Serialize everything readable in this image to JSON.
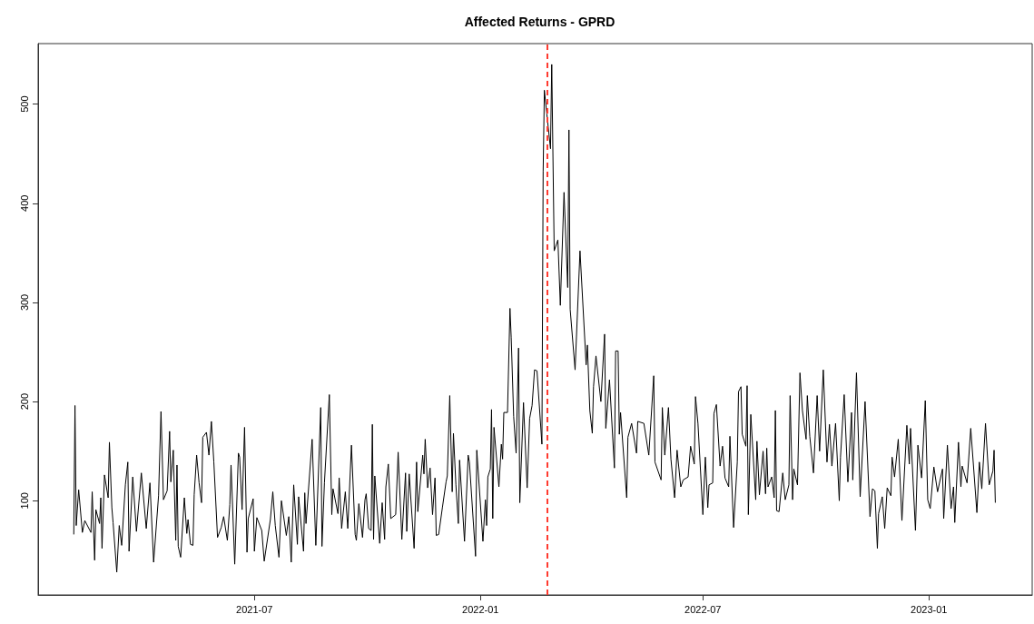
{
  "chart_data": {
    "type": "line",
    "title": "Affected Returns - GPRD",
    "color": "#000000",
    "x": [
      "2021-02-04",
      "2021-02-05",
      "2021-02-06",
      "2021-02-08",
      "2021-02-11",
      "2021-02-13",
      "2021-02-18",
      "2021-02-19",
      "2021-02-21",
      "2021-02-22",
      "2021-02-25",
      "2021-02-26",
      "2021-02-27",
      "2021-03-01",
      "2021-03-04",
      "2021-03-05",
      "2021-03-07",
      "2021-03-08",
      "2021-03-11",
      "2021-03-13",
      "2021-03-15",
      "2021-03-18",
      "2021-03-20",
      "2021-03-21",
      "2021-03-24",
      "2021-03-27",
      "2021-03-31",
      "2021-04-04",
      "2021-04-07",
      "2021-04-10",
      "2021-04-14",
      "2021-04-16",
      "2021-04-18",
      "2021-04-21",
      "2021-04-23",
      "2021-04-24",
      "2021-04-26",
      "2021-04-28",
      "2021-04-29",
      "2021-04-30",
      "2021-05-02",
      "2021-05-05",
      "2021-05-07",
      "2021-05-08",
      "2021-05-10",
      "2021-05-12",
      "2021-05-13",
      "2021-05-15",
      "2021-05-17",
      "2021-05-19",
      "2021-05-20",
      "2021-05-23",
      "2021-05-25",
      "2021-05-27",
      "2021-05-29",
      "2021-06-01",
      "2021-06-04",
      "2021-06-06",
      "2021-06-09",
      "2021-06-11",
      "2021-06-12",
      "2021-06-15",
      "2021-06-18",
      "2021-06-19",
      "2021-06-21",
      "2021-06-23",
      "2021-06-25",
      "2021-06-26",
      "2021-06-30",
      "2021-07-01",
      "2021-07-03",
      "2021-07-07",
      "2021-07-09",
      "2021-07-14",
      "2021-07-16",
      "2021-07-18",
      "2021-07-21",
      "2021-07-23",
      "2021-07-27",
      "2021-07-29",
      "2021-07-31",
      "2021-08-02",
      "2021-08-05",
      "2021-08-06",
      "2021-08-10",
      "2021-08-11",
      "2021-08-12",
      "2021-08-17",
      "2021-08-20",
      "2021-08-24",
      "2021-08-25",
      "2021-08-27",
      "2021-08-31",
      "2021-09-02",
      "2021-09-03",
      "2021-09-07",
      "2021-09-08",
      "2021-09-10",
      "2021-09-13",
      "2021-09-15",
      "2021-09-18",
      "2021-09-21",
      "2021-09-22",
      "2021-09-24",
      "2021-09-27",
      "2021-09-29",
      "2021-09-30",
      "2021-10-02",
      "2021-10-04",
      "2021-10-05",
      "2021-10-06",
      "2021-10-07",
      "2021-10-11",
      "2021-10-13",
      "2021-10-15",
      "2021-10-16",
      "2021-10-18",
      "2021-10-20",
      "2021-10-24",
      "2021-10-26",
      "2021-10-29",
      "2021-11-01",
      "2021-11-02",
      "2021-11-04",
      "2021-11-08",
      "2021-11-10",
      "2021-11-11",
      "2021-11-15",
      "2021-11-16",
      "2021-11-17",
      "2021-11-19",
      "2021-11-21",
      "2021-11-23",
      "2021-11-25",
      "2021-11-26",
      "2021-11-28",
      "2021-12-01",
      "2021-12-04",
      "2021-12-05",
      "2021-12-07",
      "2021-12-09",
      "2021-12-10",
      "2021-12-12",
      "2021-12-14",
      "2021-12-15",
      "2021-12-19",
      "2021-12-22",
      "2021-12-23",
      "2021-12-28",
      "2021-12-29",
      "2022-01-03",
      "2022-01-05",
      "2022-01-06",
      "2022-01-07",
      "2022-01-09",
      "2022-01-10",
      "2022-01-11",
      "2022-01-12",
      "2022-01-16",
      "2022-01-18",
      "2022-01-19",
      "2022-01-20",
      "2022-01-23",
      "2022-01-25",
      "2022-01-26",
      "2022-01-28",
      "2022-01-30",
      "2022-02-01",
      "2022-02-02",
      "2022-02-05",
      "2022-02-08",
      "2022-02-10",
      "2022-02-12",
      "2022-02-14",
      "2022-02-16",
      "2022-02-20",
      "2022-02-21",
      "2022-02-22",
      "2022-02-24",
      "2022-02-27",
      "2022-02-28",
      "2022-03-02",
      "2022-03-05",
      "2022-03-07",
      "2022-03-10",
      "2022-03-13",
      "2022-03-14",
      "2022-03-15",
      "2022-03-19",
      "2022-03-23",
      "2022-03-28",
      "2022-03-29",
      "2022-03-31",
      "2022-04-02",
      "2022-04-03",
      "2022-04-05",
      "2022-04-09",
      "2022-04-12",
      "2022-04-13",
      "2022-04-16",
      "2022-04-20",
      "2022-04-21",
      "2022-04-23",
      "2022-04-24",
      "2022-04-25",
      "2022-04-30",
      "2022-05-01",
      "2022-05-04",
      "2022-05-08",
      "2022-05-09",
      "2022-05-14",
      "2022-05-18",
      "2022-05-22",
      "2022-05-23",
      "2022-05-28",
      "2022-05-29",
      "2022-05-31",
      "2022-06-03",
      "2022-06-05",
      "2022-06-08",
      "2022-06-10",
      "2022-06-13",
      "2022-06-15",
      "2022-06-19",
      "2022-06-21",
      "2022-06-24",
      "2022-06-25",
      "2022-06-27",
      "2022-07-01",
      "2022-07-03",
      "2022-07-05",
      "2022-07-06",
      "2022-07-09",
      "2022-07-10",
      "2022-07-12",
      "2022-07-15",
      "2022-07-17",
      "2022-07-19",
      "2022-07-22",
      "2022-07-23",
      "2022-07-26",
      "2022-07-29",
      "2022-07-30",
      "2022-08-01",
      "2022-08-02",
      "2022-08-05",
      "2022-08-06",
      "2022-08-07",
      "2022-08-09",
      "2022-08-13",
      "2022-08-14",
      "2022-08-16",
      "2022-08-19",
      "2022-08-21",
      "2022-08-22",
      "2022-08-23",
      "2022-08-26",
      "2022-08-28",
      "2022-08-29",
      "2022-08-30",
      "2022-09-01",
      "2022-09-04",
      "2022-09-06",
      "2022-09-09",
      "2022-09-10",
      "2022-09-12",
      "2022-09-13",
      "2022-09-16",
      "2022-09-18",
      "2022-09-20",
      "2022-09-23",
      "2022-09-24",
      "2022-09-26",
      "2022-09-29",
      "2022-10-02",
      "2022-10-04",
      "2022-10-07",
      "2022-10-10",
      "2022-10-12",
      "2022-10-14",
      "2022-10-17",
      "2022-10-20",
      "2022-10-21",
      "2022-10-24",
      "2022-10-27",
      "2022-10-30",
      "2022-10-31",
      "2022-11-03",
      "2022-11-06",
      "2022-11-10",
      "2022-11-14",
      "2022-11-16",
      "2022-11-18",
      "2022-11-20",
      "2022-11-21",
      "2022-11-24",
      "2022-11-26",
      "2022-11-28",
      "2022-12-01",
      "2022-12-02",
      "2022-12-04",
      "2022-12-07",
      "2022-12-10",
      "2022-12-14",
      "2022-12-16",
      "2022-12-17",
      "2022-12-21",
      "2022-12-23",
      "2022-12-26",
      "2022-12-29",
      "2022-12-31",
      "2023-01-02",
      "2023-01-05",
      "2023-01-08",
      "2023-01-12",
      "2023-01-13",
      "2023-01-16",
      "2023-01-19",
      "2023-01-21",
      "2023-01-22",
      "2023-01-25",
      "2023-01-27",
      "2023-01-28",
      "2023-02-01",
      "2023-02-04",
      "2023-02-09",
      "2023-02-11",
      "2023-02-13",
      "2023-02-16",
      "2023-02-19",
      "2023-02-22",
      "2023-02-23",
      "2023-02-24"
    ],
    "values": [
      66,
      196,
      75,
      111,
      68,
      80,
      68,
      109,
      40,
      91,
      77,
      103,
      52,
      126,
      103,
      159,
      93,
      78,
      28,
      75,
      55,
      116,
      139,
      49,
      124,
      69,
      128,
      72,
      118,
      38,
      105,
      190,
      101,
      110,
      170,
      119,
      151,
      60,
      136,
      54,
      43,
      103,
      67,
      81,
      56,
      55,
      106,
      146,
      118,
      98,
      164,
      169,
      146,
      180,
      139,
      63,
      73,
      84,
      60,
      96,
      136,
      36,
      148,
      144,
      91,
      174,
      48,
      82,
      102,
      49,
      83,
      70,
      39,
      81,
      109,
      75,
      43,
      100,
      65,
      84,
      38,
      116,
      56,
      104,
      49,
      108,
      77,
      162,
      55,
      194,
      54,
      118,
      207,
      86,
      112,
      87,
      123,
      72,
      109,
      72,
      156,
      66,
      60,
      97,
      63,
      101,
      107,
      72,
      70,
      177,
      61,
      125,
      57,
      98,
      61,
      114,
      137,
      82,
      86,
      149,
      61,
      128,
      69,
      127,
      52,
      139,
      89,
      146,
      127,
      162,
      113,
      133,
      86,
      123,
      65,
      66,
      93,
      119,
      125,
      206,
      109,
      168,
      116,
      77,
      141,
      59,
      146,
      139,
      44,
      151,
      59,
      101,
      75,
      124,
      132,
      192,
      82,
      174,
      114,
      157,
      142,
      189,
      189,
      294,
      265,
      185,
      148,
      254,
      98,
      199,
      113,
      183,
      196,
      232,
      231,
      157,
      432,
      514,
      490,
      455,
      540,
      352,
      363,
      297,
      411,
      315,
      474,
      293,
      232,
      352,
      237,
      257,
      191,
      168,
      215,
      246,
      200,
      268,
      173,
      222,
      133,
      251,
      251,
      167,
      189,
      103,
      164,
      178,
      148,
      180,
      178,
      146,
      226,
      139,
      121,
      194,
      146,
      194,
      142,
      103,
      151,
      114,
      121,
      124,
      155,
      137,
      205,
      178,
      86,
      144,
      93,
      116,
      118,
      188,
      197,
      135,
      155,
      123,
      114,
      165,
      73,
      139,
      210,
      215,
      167,
      155,
      216,
      86,
      187,
      101,
      160,
      106,
      150,
      107,
      153,
      114,
      124,
      103,
      191,
      90,
      89,
      128,
      101,
      116,
      206,
      101,
      132,
      116,
      229,
      191,
      162,
      206,
      165,
      128,
      206,
      150,
      232,
      139,
      177,
      135,
      178,
      100,
      144,
      207,
      119,
      189,
      121,
      229,
      104,
      200,
      84,
      112,
      110,
      52,
      87,
      104,
      72,
      113,
      105,
      144,
      124,
      162,
      80,
      176,
      137,
      173,
      70,
      156,
      123,
      201,
      101,
      92,
      134,
      109,
      132,
      82,
      156,
      92,
      114,
      78,
      159,
      114,
      135,
      118,
      173,
      88,
      139,
      112,
      178,
      116,
      130,
      151,
      98
    ],
    "xlim": [
      "2021-01-06",
      "2023-03-26"
    ],
    "ylim": [
      5,
      561
    ],
    "xticks": [
      "2021-07",
      "2022-01",
      "2022-07",
      "2023-01"
    ],
    "yticks": [
      100,
      200,
      300,
      400,
      500
    ],
    "ref_lines": [
      {
        "axis": "x",
        "value": "2022-02-24",
        "color": "#ff3b30",
        "line_style": "dashed"
      }
    ]
  }
}
